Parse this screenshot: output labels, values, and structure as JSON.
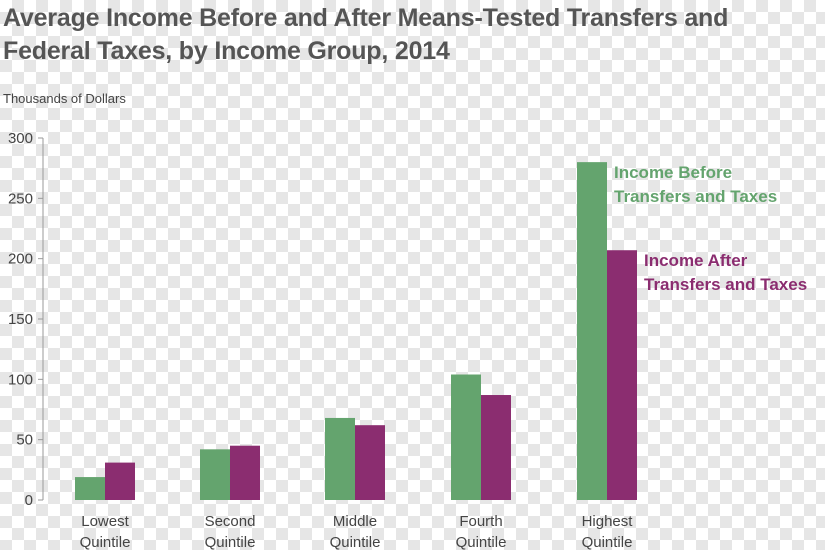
{
  "chart_data": {
    "type": "bar",
    "title": "Average Income Before and After Means-Tested Transfers and\nFederal Taxes, by Income Group, 2014",
    "ylabel": "Thousands of Dollars",
    "xlabel": "",
    "ylim": [
      0,
      300
    ],
    "yticks": [
      0,
      50,
      100,
      150,
      200,
      250,
      300
    ],
    "categories": [
      "Lowest\nQuintile",
      "Second\nQuintile",
      "Middle\nQuintile",
      "Fourth\nQuintile",
      "Highest\nQuintile"
    ],
    "series": [
      {
        "name": "Income Before\nTransfers and Taxes",
        "color": "#64a46e",
        "values": [
          19,
          42,
          68,
          104,
          280
        ]
      },
      {
        "name": "Income After\nTransfers and Taxes",
        "color": "#8b2d70",
        "values": [
          31,
          45,
          62,
          87,
          207
        ]
      }
    ],
    "legend": "inline-right-of-bars",
    "grid": false
  }
}
